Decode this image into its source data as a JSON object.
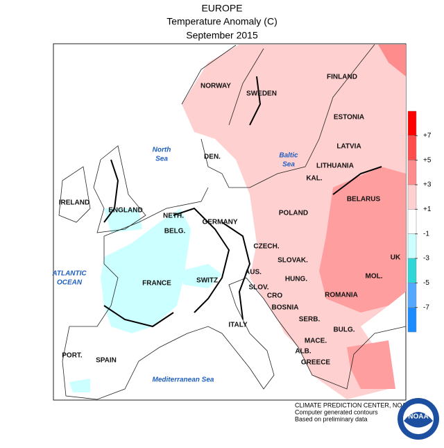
{
  "header": {
    "title": "EUROPE",
    "subtitle": "Temperature Anomaly (C)",
    "date": "September 2015"
  },
  "country_labels": [
    "NORWAY",
    "SWEDEN",
    "FINLAND",
    "ESTONIA",
    "LATVIA",
    "LITHUANIA",
    "KAL.",
    "BELARUS",
    "POLAND",
    "DEN.",
    "IRELAND",
    "ENGLAND",
    "NETH.",
    "BELG.",
    "GERMANY",
    "CZECH.",
    "UK",
    "SLOVAK.",
    "FRANCE",
    "SWITZ.",
    "AUS.",
    "SLOV.",
    "HUNG.",
    "MOL.",
    "ROMANIA",
    "CRO",
    "BOSNIA",
    "SERB.",
    "ITALY",
    "BULG.",
    "MACE.",
    "ALB.",
    "PORT.",
    "SPAIN",
    "GREECE"
  ],
  "sea_labels": [
    [
      "North",
      "Sea"
    ],
    [
      "Baltic",
      "Sea"
    ],
    [
      "ATLANTIC",
      "OCEAN"
    ],
    [
      "Mediterranean Sea"
    ]
  ],
  "scale": {
    "colors": [
      "#ff0000",
      "#ff4d4d",
      "#ff8c8c",
      "#ffd0d0",
      "#ffffff",
      "#ccffff",
      "#33d6d6",
      "#55a8ff",
      "#1a8cff"
    ],
    "ticks": [
      {
        "value": 7,
        "label": "+7"
      },
      {
        "value": 5,
        "label": "+5"
      },
      {
        "value": 3,
        "label": "+3"
      },
      {
        "value": 1,
        "label": "+1"
      },
      -1,
      -3,
      -5,
      -7
    ]
  },
  "footer": {
    "lines": [
      "CLIMATE PREDICTION CENTER, NOAA",
      "Computer generated contours",
      "Based on preliminary data"
    ],
    "logo": "NOAA"
  }
}
